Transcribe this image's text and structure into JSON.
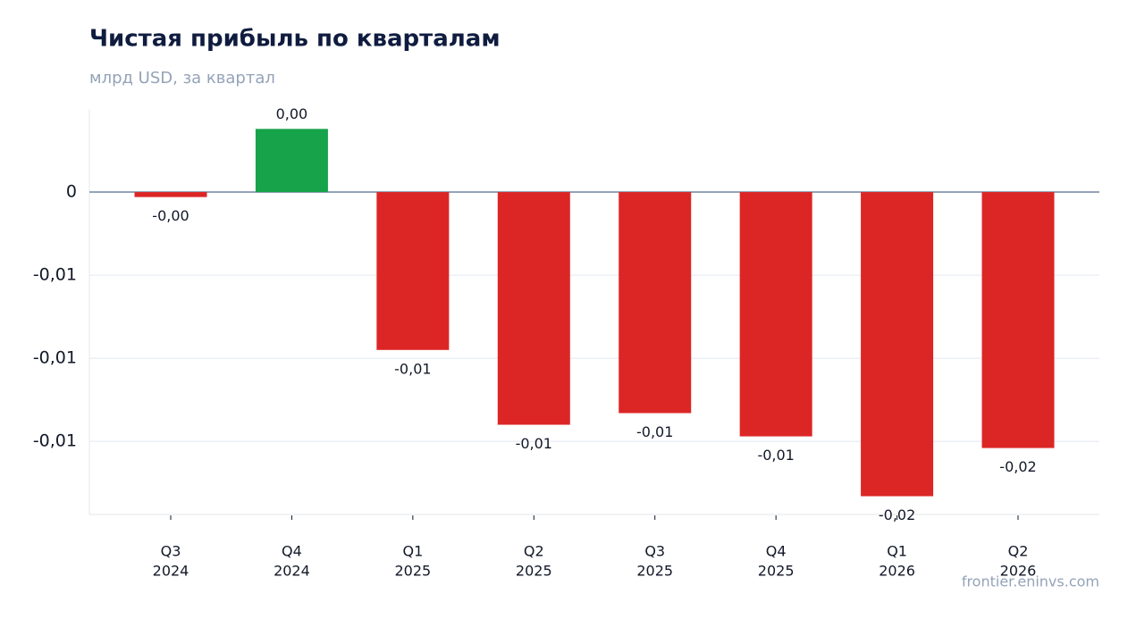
{
  "chart_data": {
    "type": "bar",
    "title": "Чистая прибыль по кварталам",
    "subtitle": "млрд USD, за квартал",
    "source": "frontier.eninvs.com",
    "categories": [
      [
        "Q3",
        "2024"
      ],
      [
        "Q4",
        "2024"
      ],
      [
        "Q1",
        "2025"
      ],
      [
        "Q2",
        "2025"
      ],
      [
        "Q3",
        "2025"
      ],
      [
        "Q4",
        "2025"
      ],
      [
        "Q1",
        "2026"
      ],
      [
        "Q2",
        "2026"
      ]
    ],
    "values": [
      -0.0003,
      0.0038,
      -0.0095,
      -0.014,
      -0.0133,
      -0.0147,
      -0.0183,
      -0.0154
    ],
    "value_labels": [
      "-0,00",
      "0,00",
      "-0,01",
      "-0,01",
      "-0,01",
      "-0,01",
      "-0,02",
      "-0,02"
    ],
    "positive_color": "#16a34a",
    "negative_color": "#dc2626",
    "ylim": [
      -0.0194,
      0.005
    ],
    "yticks": [
      0,
      {
        "value": -0.005,
        "label": "-0,01"
      },
      {
        "value": -0.01,
        "label": "-0,01"
      },
      {
        "value": -0.015,
        "label": "-0,01"
      }
    ],
    "grid": true
  }
}
